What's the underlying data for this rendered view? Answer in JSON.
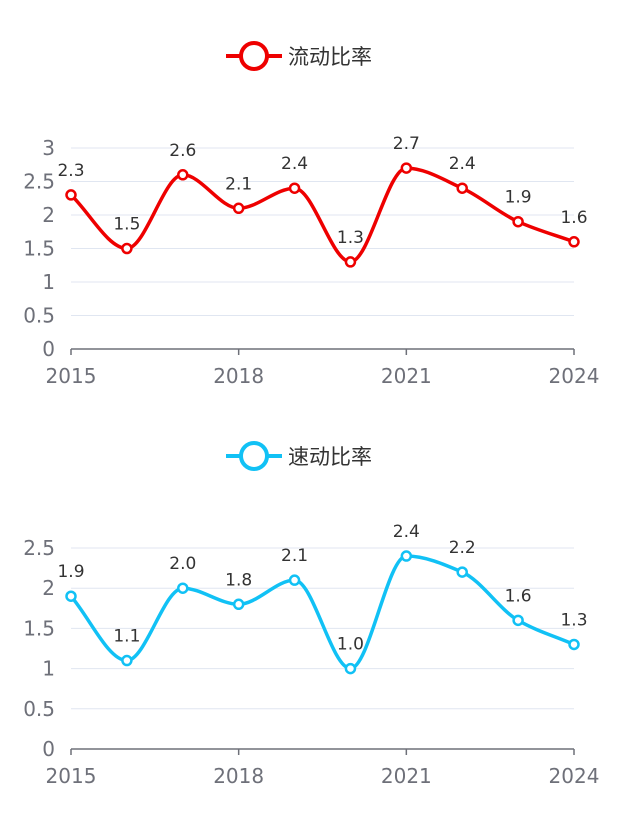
{
  "chart_data": [
    {
      "type": "line",
      "title": "",
      "xlabel": "",
      "ylabel": "",
      "legend_position": "top-center",
      "grid": true,
      "smooth": true,
      "color": "#ee0000",
      "series": [
        {
          "name": "流动比率",
          "x": [
            "2015",
            "2016",
            "2017",
            "2018",
            "2019",
            "2020",
            "2021",
            "2022",
            "2023",
            "2024"
          ],
          "values": [
            2.3,
            1.5,
            2.6,
            2.1,
            2.4,
            1.3,
            2.7,
            2.4,
            1.9,
            1.6
          ],
          "labels": [
            "2.3",
            "1.5",
            "2.6",
            "2.1",
            "2.4",
            "1.3",
            "2.7",
            "2.4",
            "1.9",
            "1.6"
          ]
        }
      ],
      "x_tick_labels": [
        "2015",
        "2018",
        "2021",
        "2024"
      ],
      "y_ticks": [
        0,
        0.5,
        1,
        1.5,
        2,
        2.5,
        3
      ],
      "y_tick_labels": [
        "0",
        "0.5",
        "1",
        "1.5",
        "2",
        "2.5",
        "3"
      ],
      "ylim": [
        0,
        3
      ]
    },
    {
      "type": "line",
      "title": "",
      "xlabel": "",
      "ylabel": "",
      "legend_position": "top-center",
      "grid": true,
      "smooth": true,
      "color": "#11c1f5",
      "series": [
        {
          "name": "速动比率",
          "x": [
            "2015",
            "2016",
            "2017",
            "2018",
            "2019",
            "2020",
            "2021",
            "2022",
            "2023",
            "2024"
          ],
          "values": [
            1.9,
            1.1,
            2.0,
            1.8,
            2.1,
            1.0,
            2.4,
            2.2,
            1.6,
            1.3
          ],
          "labels": [
            "1.9",
            "1.1",
            "2.0",
            "1.8",
            "2.1",
            "1.0",
            "2.4",
            "2.2",
            "1.6",
            "1.3"
          ]
        }
      ],
      "x_tick_labels": [
        "2015",
        "2018",
        "2021",
        "2024"
      ],
      "y_ticks": [
        0,
        0.5,
        1,
        1.5,
        2,
        2.5
      ],
      "y_tick_labels": [
        "0",
        "0.5",
        "1",
        "1.5",
        "2",
        "2.5"
      ],
      "ylim": [
        0,
        2.5
      ]
    }
  ]
}
